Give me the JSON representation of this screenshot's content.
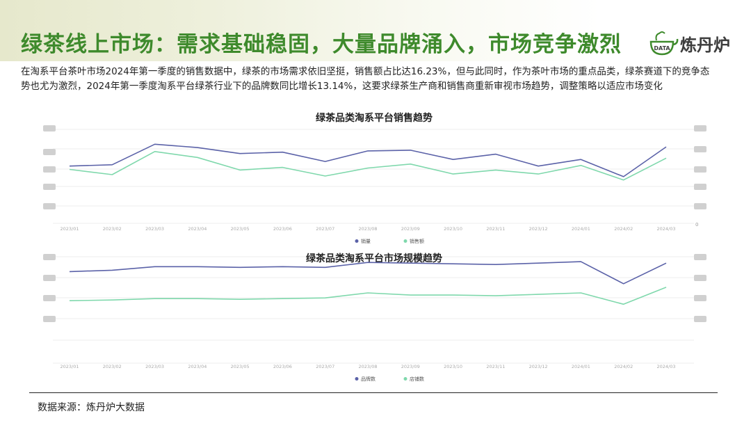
{
  "header": {
    "title": "绿茶线上市场：需求基础稳固，大量品牌涌入，市场竞争激烈",
    "logo_text": "炼丹炉",
    "logo_badge": "DATA"
  },
  "intro_text": "在淘系平台茶叶市场2024年第一季度的销售数据中，绿茶的市场需求依旧坚挺，销售额占比达16.23%，但与此同时，作为茶叶市场的重点品类，绿茶赛道下的竞争态势也尤为激烈，2024年第一季度淘系平台绿茶行业下的品牌数同比增长13.14%，这要求绿茶生产商和销售商重新审视市场趋势，调整策略以适应市场变化",
  "footer": {
    "source": "数据来源：炼丹炉大数据"
  },
  "colors": {
    "series_a": "#5b62a8",
    "series_b": "#7fd8ac",
    "title_green": "#3e8a2c"
  },
  "chart_data": [
    {
      "type": "line",
      "title": "绿茶品类淘系平台销售趋势",
      "categories": [
        "2023/01",
        "2023/02",
        "2023/03",
        "2023/04",
        "2023/05",
        "2023/06",
        "2023/07",
        "2023/08",
        "2023/09",
        "2023/10",
        "2023/11",
        "2023/12",
        "2024/01",
        "2024/02",
        "2024/03"
      ],
      "series": [
        {
          "name": "销量",
          "values": [
            0.34,
            0.36,
            0.67,
            0.62,
            0.53,
            0.55,
            0.41,
            0.57,
            0.58,
            0.44,
            0.52,
            0.34,
            0.44,
            0.18,
            0.63
          ]
        },
        {
          "name": "销售额",
          "values": [
            0.29,
            0.21,
            0.56,
            0.47,
            0.28,
            0.32,
            0.19,
            0.31,
            0.37,
            0.22,
            0.28,
            0.22,
            0.35,
            0.13,
            0.46
          ]
        }
      ],
      "y_right_ticks": [
        "0"
      ],
      "legend_position": "bottom",
      "grid": true
    },
    {
      "type": "line",
      "title": "绿茶品类淘系平台市场规模趋势",
      "categories": [
        "2023/01",
        "2023/02",
        "2023/03",
        "2023/04",
        "2023/05",
        "2023/06",
        "2023/07",
        "2023/08",
        "2023/09",
        "2023/10",
        "2023/11",
        "2023/12",
        "2024/01",
        "2024/02",
        "2024/03"
      ],
      "series": [
        {
          "name": "品牌数",
          "values": [
            0.79,
            0.81,
            0.86,
            0.86,
            0.85,
            0.86,
            0.85,
            0.92,
            0.91,
            0.9,
            0.89,
            0.91,
            0.93,
            0.62,
            0.91
          ]
        },
        {
          "name": "店铺数",
          "values": [
            0.38,
            0.39,
            0.41,
            0.41,
            0.4,
            0.41,
            0.42,
            0.49,
            0.46,
            0.46,
            0.45,
            0.47,
            0.49,
            0.33,
            0.57
          ]
        }
      ],
      "legend_position": "bottom",
      "grid": true
    }
  ]
}
